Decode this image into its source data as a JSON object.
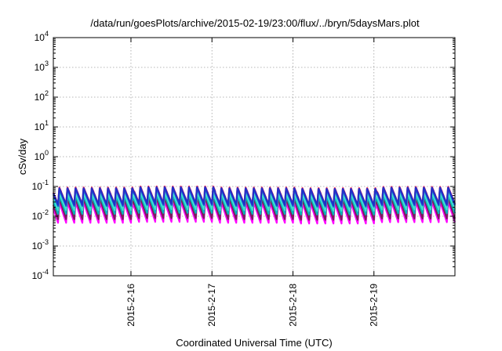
{
  "chart_data": {
    "type": "line",
    "title": "/data/run/goesPlots/archive/2015-02-19/23:00/flux/../bryn/5daysMars.plot",
    "xlabel": "Coordinated Universal Time (UTC)",
    "ylabel": "cSv/day",
    "yscale": "log",
    "ylim": [
      0.0001,
      10000
    ],
    "ytick_exponents": [
      -4,
      -3,
      -2,
      -1,
      0,
      1,
      2,
      3,
      4
    ],
    "xlim": [
      "2015-02-15T01:00",
      "2015-02-20T00:00"
    ],
    "xticks": [
      {
        "date": "2015-02-16T00:00",
        "label": "2015-2-16"
      },
      {
        "date": "2015-02-17T00:00",
        "label": "2015-2-17"
      },
      {
        "date": "2015-02-18T00:00",
        "label": "2015-2-18"
      },
      {
        "date": "2015-02-19T00:00",
        "label": "2015-2-19"
      }
    ],
    "grid": true,
    "pattern": "sawtooth, about 10 cycles per day",
    "series": [
      {
        "color": "#ff00ff",
        "low": 0.006,
        "high": 0.03
      },
      {
        "color": "#7a1f5c",
        "low": 0.008,
        "high": 0.04
      },
      {
        "color": "#00b8b8",
        "low": 0.012,
        "high": 0.05
      },
      {
        "color": "#3fe0d0",
        "low": 0.016,
        "high": 0.06
      },
      {
        "color": "#1e6bd6",
        "low": 0.022,
        "high": 0.08
      },
      {
        "color": "#ff2050",
        "low": 0.025,
        "high": 0.095
      },
      {
        "color": "#2030c8",
        "low": 0.024,
        "high": 0.09
      }
    ]
  }
}
